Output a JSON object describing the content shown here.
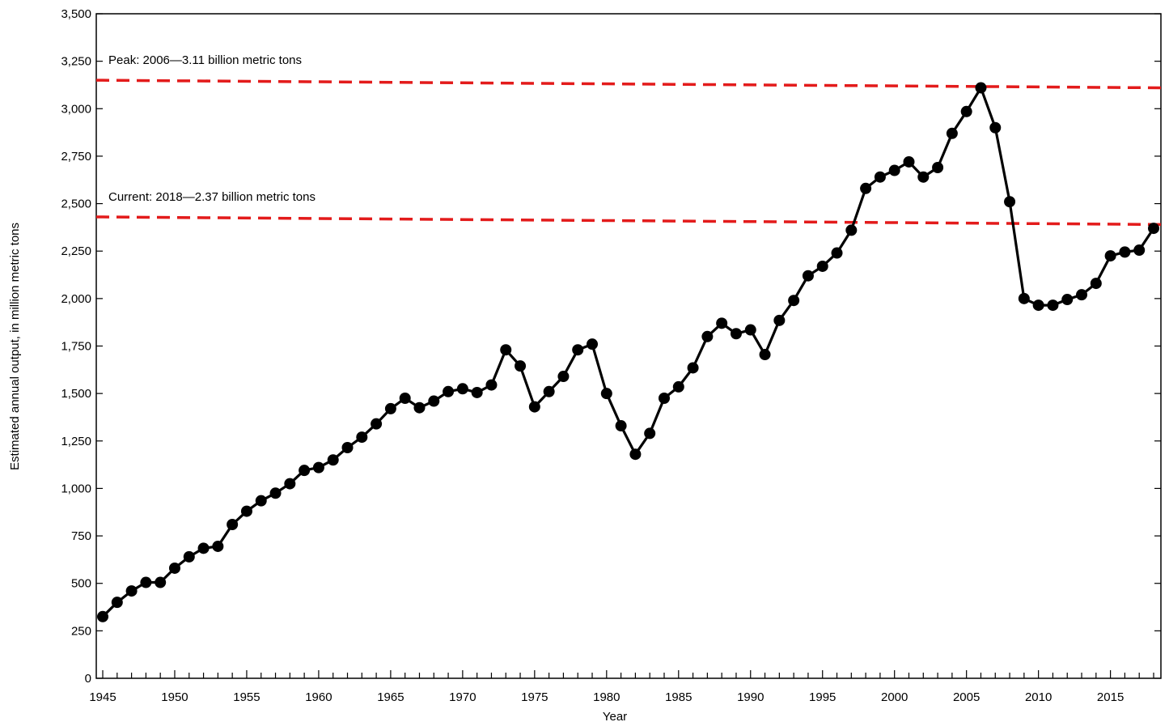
{
  "chart_data": {
    "type": "line",
    "title": "",
    "xlabel": "Year",
    "ylabel": "Estimated annual output, in million metric tons",
    "xlim": [
      1945,
      2018
    ],
    "ylim": [
      0,
      3500
    ],
    "x_ticks": [
      "1945",
      "1950",
      "1955",
      "1960",
      "1965",
      "1970",
      "1975",
      "1980",
      "1985",
      "1990",
      "1995",
      "2000",
      "2005",
      "2010",
      "2015"
    ],
    "y_ticks": [
      "0",
      "250",
      "500",
      "750",
      "1,000",
      "1,250",
      "1,500",
      "1,750",
      "2,000",
      "2,250",
      "2,500",
      "2,750",
      "3,000",
      "3,250",
      "3,500"
    ],
    "grid": false,
    "colors": {
      "series": "#000000",
      "reference": "#e31b1b"
    },
    "series": [
      {
        "x": [
          1945,
          1946,
          1947,
          1948,
          1949,
          1950,
          1951,
          1952,
          1953,
          1954,
          1955,
          1956,
          1957,
          1958,
          1959,
          1960,
          1961,
          1962,
          1963,
          1964,
          1965,
          1966,
          1967,
          1968,
          1969,
          1970,
          1971,
          1972,
          1973,
          1974,
          1975,
          1976,
          1977,
          1978,
          1979,
          1980,
          1981,
          1982,
          1983,
          1984,
          1985,
          1986,
          1987,
          1988,
          1989,
          1990,
          1991,
          1992,
          1993,
          1994,
          1995,
          1996,
          1997,
          1998,
          1999,
          2000,
          2001,
          2002,
          2003,
          2004,
          2005,
          2006,
          2007,
          2008,
          2009,
          2010,
          2011,
          2012,
          2013,
          2014,
          2015,
          2016,
          2017,
          2018
        ],
        "values": [
          325,
          400,
          460,
          505,
          505,
          580,
          640,
          685,
          695,
          810,
          880,
          935,
          975,
          1025,
          1095,
          1110,
          1150,
          1215,
          1270,
          1340,
          1420,
          1475,
          1425,
          1460,
          1510,
          1525,
          1505,
          1545,
          1730,
          1645,
          1430,
          1510,
          1590,
          1730,
          1760,
          1500,
          1330,
          1180,
          1290,
          1475,
          1535,
          1635,
          1800,
          1870,
          1815,
          1835,
          1705,
          1885,
          1990,
          2120,
          2170,
          2240,
          2360,
          2580,
          2640,
          2675,
          2720,
          2640,
          2690,
          2870,
          2985,
          3110,
          2900,
          2510,
          2000,
          1965,
          1965,
          1995,
          2020,
          2080,
          2225,
          2245,
          2255,
          2370
        ]
      }
    ],
    "reference_lines": [
      {
        "label": "Peak: 2006—3.11 billion metric tons",
        "y_start": 3150,
        "y_end": 3110
      },
      {
        "label": "Current: 2018—2.37 billion metric tons",
        "y_start": 2430,
        "y_end": 2390
      }
    ]
  }
}
